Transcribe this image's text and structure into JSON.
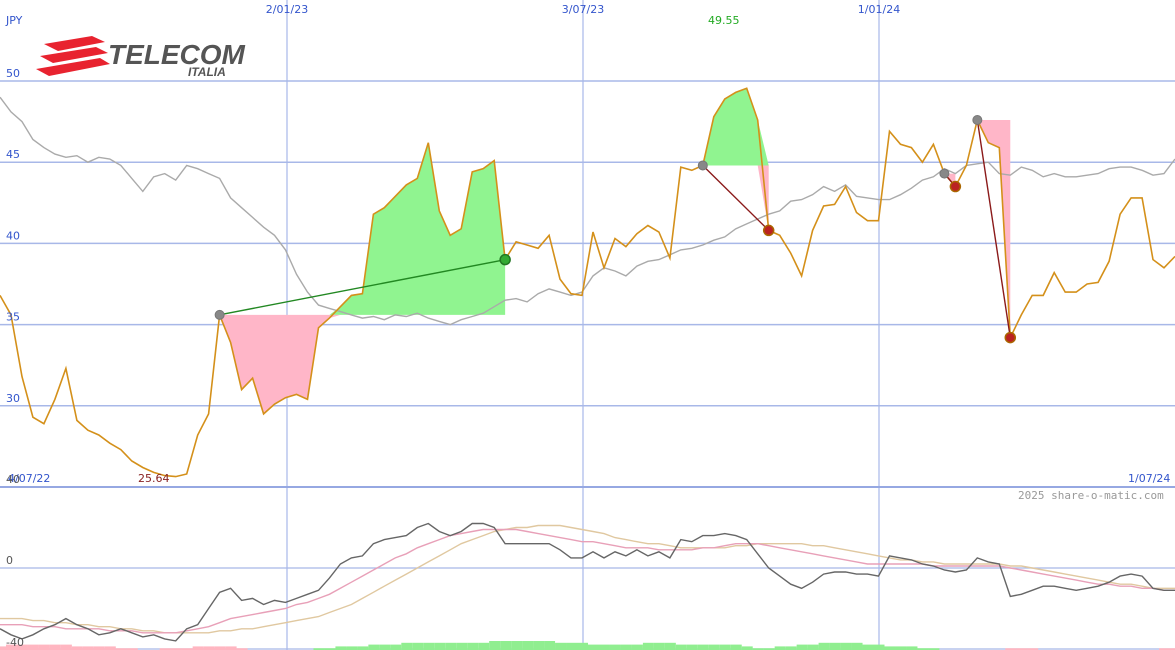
{
  "brand": {
    "name": "TELECOM",
    "sub": "ITALIA",
    "color": "#e8232f"
  },
  "chart_data": {
    "type": "line",
    "currency_label": "JPY",
    "credit": "2025 share-o-matic.com",
    "x_tick_labels_top": [
      "2/01/23",
      "3/07/23",
      "1/01/24"
    ],
    "x_start_label": "4/07/22",
    "x_end_label": "1/07/24",
    "ylim": [
      25,
      50
    ],
    "y_ticks": [
      30,
      35,
      40,
      45,
      50
    ],
    "high_label": "49.55",
    "low_label": "25.64",
    "price": {
      "name": "",
      "color": "#d4901a",
      "values": [
        36.8,
        35.6,
        31.8,
        29.3,
        28.9,
        30.4,
        32.3,
        29.1,
        28.5,
        28.2,
        27.7,
        27.3,
        26.6,
        26.2,
        25.9,
        25.7,
        25.64,
        25.8,
        28.2,
        29.5,
        35.6,
        33.9,
        31.0,
        31.7,
        29.5,
        30.1,
        30.5,
        30.7,
        30.4,
        34.8,
        35.4,
        36.1,
        36.8,
        36.9,
        41.8,
        42.2,
        42.9,
        43.6,
        44.0,
        46.2,
        42.0,
        40.5,
        40.9,
        44.4,
        44.6,
        45.1,
        39.0,
        40.1,
        39.9,
        39.7,
        40.5,
        37.8,
        36.9,
        36.8,
        40.7,
        38.5,
        40.3,
        39.8,
        40.6,
        41.1,
        40.7,
        39.1,
        44.7,
        44.5,
        44.8,
        47.8,
        48.9,
        49.3,
        49.55,
        47.6,
        40.8,
        40.5,
        39.4,
        38.0,
        40.8,
        42.3,
        42.4,
        43.5,
        41.9,
        41.4,
        41.4,
        46.9,
        46.1,
        45.9,
        45.0,
        46.1,
        44.3,
        43.5,
        44.8,
        47.6,
        46.2,
        45.9,
        34.2,
        35.6,
        36.8,
        36.8,
        38.2,
        37.0,
        37.0,
        37.5,
        37.6,
        38.9,
        41.8,
        42.8,
        42.8,
        39.0,
        38.5,
        39.2
      ]
    },
    "moving_average": {
      "name": "",
      "color": "#aaaaaa",
      "values": [
        49.0,
        48.1,
        47.5,
        46.4,
        45.9,
        45.5,
        45.3,
        45.4,
        45.0,
        45.3,
        45.2,
        44.8,
        44.0,
        43.2,
        44.1,
        44.3,
        43.9,
        44.8,
        44.6,
        44.3,
        44.0,
        42.8,
        42.2,
        41.6,
        41.0,
        40.5,
        39.6,
        38.1,
        37.0,
        36.2,
        36.0,
        35.8,
        35.6,
        35.4,
        35.5,
        35.3,
        35.6,
        35.5,
        35.7,
        35.4,
        35.2,
        35.0,
        35.3,
        35.5,
        35.7,
        36.1,
        36.5,
        36.6,
        36.4,
        36.9,
        37.2,
        37.0,
        36.8,
        37.0,
        38.0,
        38.5,
        38.3,
        38.0,
        38.6,
        38.9,
        39.0,
        39.3,
        39.6,
        39.7,
        39.9,
        40.2,
        40.4,
        40.9,
        41.2,
        41.5,
        41.8,
        42.0,
        42.6,
        42.7,
        43.0,
        43.5,
        43.2,
        43.6,
        42.9,
        42.8,
        42.7,
        42.7,
        43.0,
        43.4,
        43.9,
        44.1,
        44.6,
        44.3,
        44.8,
        44.9,
        45.0,
        44.3,
        44.2,
        44.7,
        44.5,
        44.1,
        44.3,
        44.1,
        44.1,
        44.2,
        44.3,
        44.6,
        44.7,
        44.7,
        44.5,
        44.2,
        44.3,
        45.2
      ]
    },
    "annotations": [
      {
        "type": "buy",
        "from_index": 20,
        "to_index": 46,
        "from_value": 35.6,
        "to_value": 39.0
      },
      {
        "type": "sell",
        "from_index": 64,
        "to_index": 70,
        "from_value": 44.8,
        "to_value": 40.8
      },
      {
        "type": "sell",
        "from_index": 86,
        "to_index": 87,
        "from_value": 44.3,
        "to_value": 43.5
      },
      {
        "type": "sell",
        "from_index": 89,
        "to_index": 92,
        "from_value": 47.6,
        "to_value": 34.2
      }
    ],
    "oscillator": {
      "ylim": [
        -40,
        40
      ],
      "y_ticks": [
        40,
        0,
        -40
      ],
      "line": {
        "name": "",
        "color": "#666666",
        "values": [
          -30,
          -33,
          -35,
          -33,
          -30,
          -28,
          -25,
          -28,
          -30,
          -33,
          -32,
          -30,
          -32,
          -34,
          -33,
          -35,
          -36,
          -30,
          -28,
          -20,
          -12,
          -10,
          -16,
          -15,
          -18,
          -16,
          -17,
          -15,
          -13,
          -11,
          -5,
          2,
          5,
          6,
          12,
          14,
          15,
          16,
          20,
          22,
          18,
          16,
          18,
          22,
          22,
          20,
          12,
          12,
          12,
          12,
          12,
          9,
          5,
          5,
          8,
          5,
          8,
          6,
          9,
          6,
          8,
          5,
          14,
          13,
          16,
          16,
          17,
          16,
          14,
          7,
          0,
          -4,
          -8,
          -10,
          -7,
          -3,
          -2,
          -2,
          -3,
          -3,
          -4,
          6,
          5,
          4,
          2,
          1,
          -1,
          -2,
          -1,
          5,
          3,
          2,
          -14,
          -13,
          -11,
          -9,
          -9,
          -10,
          -11,
          -10,
          -9,
          -7,
          -4,
          -3,
          -4,
          -10,
          -11,
          -11
        ]
      },
      "signal_fast": {
        "name": "",
        "color": "#e8a0b8",
        "values": [
          -28,
          -28,
          -28,
          -29,
          -29,
          -29,
          -30,
          -30,
          -30,
          -30,
          -31,
          -31,
          -31,
          -32,
          -32,
          -32,
          -32,
          -31,
          -30,
          -29,
          -27,
          -25,
          -24,
          -23,
          -22,
          -21,
          -20,
          -18,
          -17,
          -15,
          -13,
          -10,
          -7,
          -4,
          -1,
          2,
          5,
          7,
          10,
          12,
          14,
          16,
          17,
          18,
          19,
          19,
          19,
          19,
          18,
          17,
          16,
          15,
          14,
          13,
          13,
          12,
          11,
          10,
          10,
          10,
          9,
          9,
          9,
          9,
          10,
          10,
          11,
          12,
          12,
          12,
          11,
          10,
          9,
          8,
          7,
          6,
          5,
          4,
          3,
          2,
          2,
          2,
          2,
          2,
          2,
          1,
          1,
          1,
          1,
          1,
          1,
          1,
          0,
          -1,
          -2,
          -3,
          -4,
          -5,
          -6,
          -7,
          -8,
          -8,
          -9,
          -9,
          -10,
          -10,
          -11,
          -11
        ]
      },
      "signal_slow": {
        "name": "",
        "color": "#e0c8a0",
        "values": [
          -25,
          -25,
          -25,
          -26,
          -26,
          -27,
          -27,
          -28,
          -28,
          -29,
          -29,
          -30,
          -30,
          -31,
          -31,
          -32,
          -32,
          -32,
          -32,
          -32,
          -31,
          -31,
          -30,
          -30,
          -29,
          -28,
          -27,
          -26,
          -25,
          -24,
          -22,
          -20,
          -18,
          -15,
          -12,
          -9,
          -6,
          -3,
          0,
          3,
          6,
          9,
          12,
          14,
          16,
          18,
          19,
          20,
          20,
          21,
          21,
          21,
          20,
          19,
          18,
          17,
          15,
          14,
          13,
          12,
          12,
          11,
          10,
          10,
          10,
          10,
          10,
          11,
          11,
          12,
          12,
          12,
          12,
          12,
          11,
          11,
          10,
          9,
          8,
          7,
          6,
          5,
          4,
          4,
          3,
          3,
          2,
          2,
          2,
          2,
          2,
          2,
          1,
          1,
          0,
          -1,
          -2,
          -3,
          -4,
          -5,
          -6,
          -7,
          -8,
          -8,
          -9,
          -10,
          -10,
          -10
        ]
      }
    },
    "volume_bars": {
      "positive_color": "#90ee90",
      "negative_color": "#ffb6c1",
      "values": [
        -2,
        -3,
        -3,
        -3,
        -3,
        -3,
        -3,
        -2,
        -2,
        -2,
        -2,
        -1,
        -1,
        0,
        0,
        -1,
        -1,
        -1,
        -2,
        -2,
        -2,
        -2,
        -1,
        0,
        0,
        0,
        0,
        0,
        0,
        1,
        1,
        2,
        2,
        2,
        3,
        3,
        3,
        4,
        4,
        4,
        4,
        4,
        4,
        4,
        4,
        5,
        5,
        5,
        5,
        5,
        5,
        4,
        4,
        4,
        3,
        3,
        3,
        3,
        3,
        4,
        4,
        4,
        3,
        3,
        3,
        3,
        3,
        3,
        2,
        1,
        1,
        2,
        2,
        3,
        3,
        4,
        4,
        4,
        4,
        3,
        3,
        2,
        2,
        2,
        1,
        1,
        0,
        0,
        0,
        0,
        0,
        0,
        -1,
        -1,
        -1,
        0,
        0,
        0,
        0,
        0,
        0,
        0,
        0,
        0,
        0,
        0,
        -1,
        -1
      ]
    }
  }
}
